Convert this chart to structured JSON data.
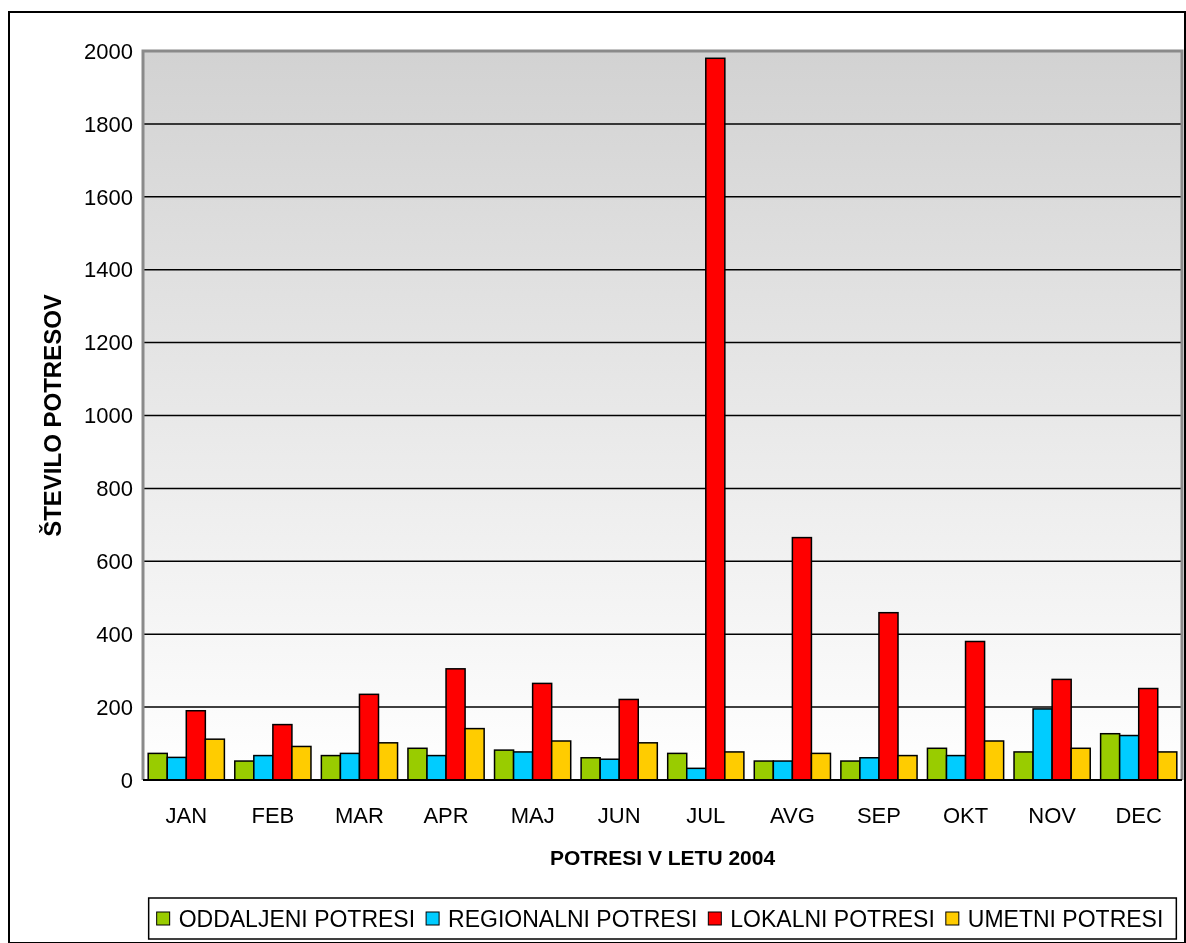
{
  "chart_data": {
    "type": "bar",
    "xlabel": "POTRESI V LETU 2004",
    "ylabel": "ŠTEVILO POTRESOV",
    "categories": [
      "JAN",
      "FEB",
      "MAR",
      "APR",
      "MAJ",
      "JUN",
      "JUL",
      "AVG",
      "SEP",
      "OKT",
      "NOV",
      "DEC"
    ],
    "series": [
      {
        "name": "ODDALJENI POTRESI",
        "color": "#99cc00",
        "values": [
          73,
          52,
          67,
          87,
          82,
          61,
          73,
          52,
          52,
          87,
          77,
          127
        ]
      },
      {
        "name": "REGIONALNI POTRESI",
        "color": "#00ccff",
        "values": [
          62,
          67,
          73,
          67,
          77,
          57,
          32,
          52,
          61,
          67,
          195,
          122
        ]
      },
      {
        "name": "LOKALNI POTRESI",
        "color": "#ff0000",
        "values": [
          190,
          152,
          235,
          305,
          265,
          221,
          1980,
          665,
          459,
          380,
          276,
          251
        ]
      },
      {
        "name": "UMETNI POTRESI",
        "color": "#ffcc00",
        "values": [
          112,
          92,
          102,
          141,
          107,
          102,
          77,
          73,
          67,
          107,
          87,
          77
        ]
      }
    ],
    "ylim": [
      0,
      2000
    ],
    "yticks": [
      0,
      200,
      400,
      600,
      800,
      1000,
      1200,
      1400,
      1600,
      1800,
      2000
    ],
    "grid": "y",
    "legend": "bottom"
  }
}
